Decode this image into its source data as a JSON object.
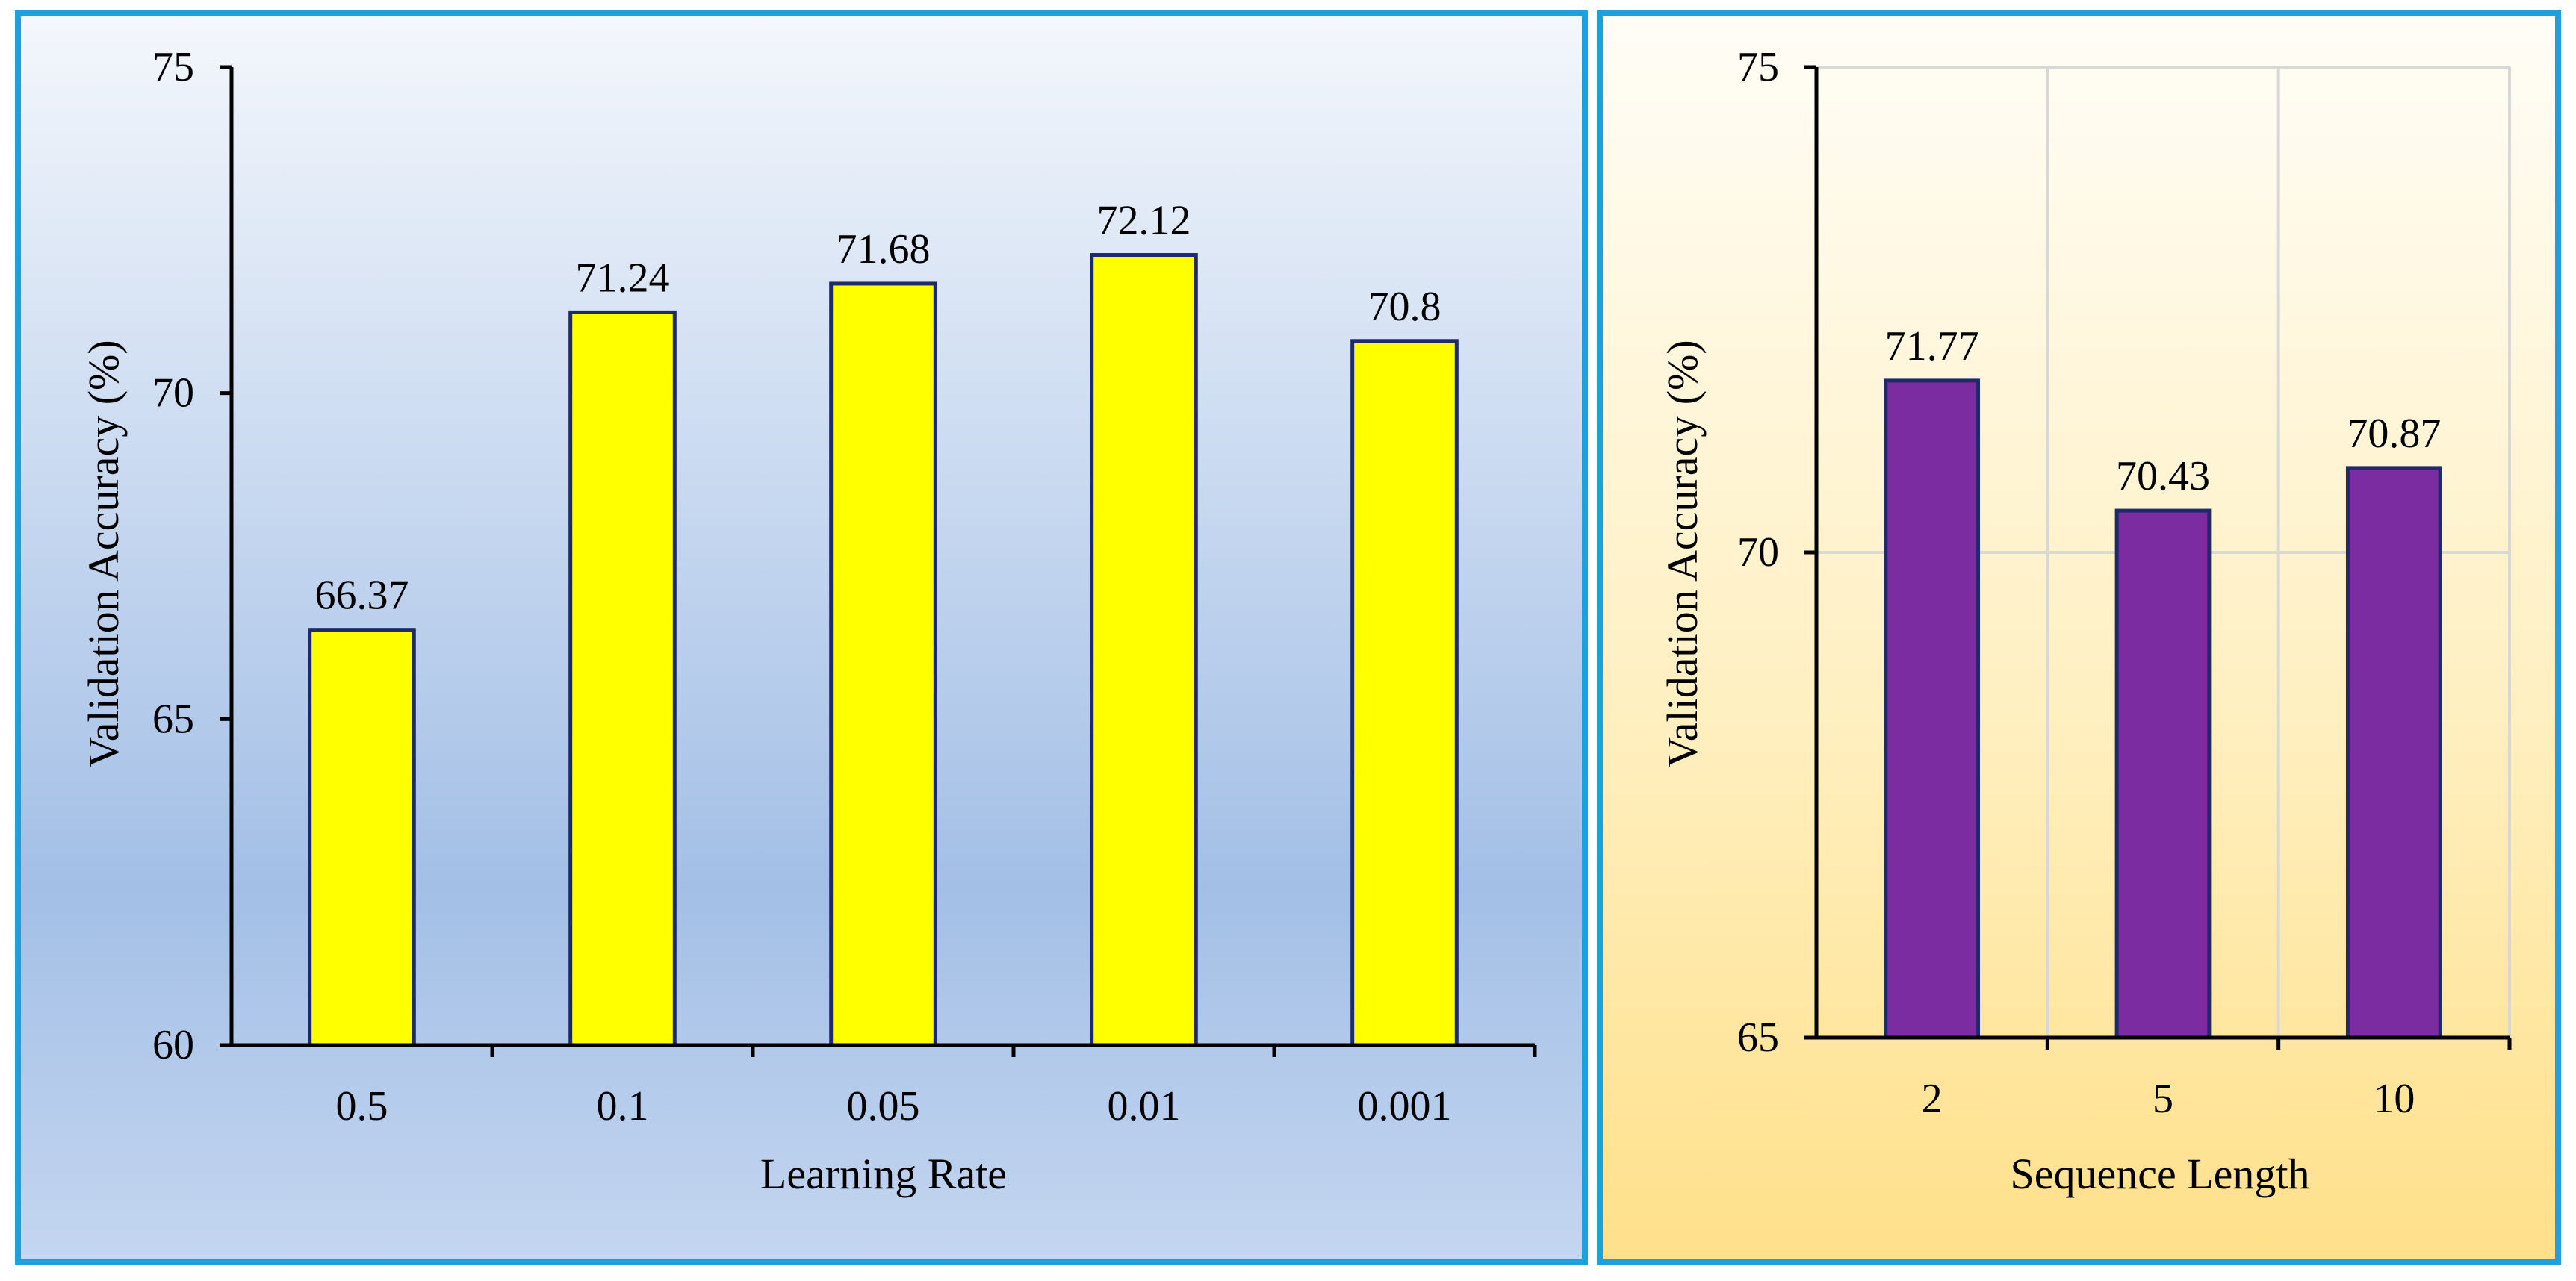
{
  "chart_data": [
    {
      "type": "bar",
      "title": "",
      "xlabel": "Learning Rate",
      "ylabel": "Validation Accuracy (%)",
      "categories": [
        "0.5",
        "0.1",
        "0.05",
        "0.01",
        "0.001"
      ],
      "values": [
        66.37,
        71.24,
        71.68,
        72.12,
        70.8
      ],
      "value_labels": [
        "66.37",
        "71.24",
        "71.68",
        "72.12",
        "70.8"
      ],
      "ylim": [
        60,
        75
      ],
      "yticks": [
        60,
        65,
        70,
        75
      ],
      "ytick_labels": [
        "60",
        "65",
        "70",
        "75"
      ],
      "grid": false,
      "bar_color": "#FFFF00",
      "bar_edge_color": "#1F2A6B",
      "background": [
        "#F4F7FC",
        "#A3BFE6",
        "#C4D6F0"
      ],
      "frame_color": "#1EA0DC"
    },
    {
      "type": "bar",
      "title": "",
      "xlabel": "Sequence Length",
      "ylabel": "Validation Accuracy (%)",
      "categories": [
        "2",
        "5",
        "10"
      ],
      "values": [
        71.77,
        70.43,
        70.87
      ],
      "value_labels": [
        "71.77",
        "70.43",
        "70.87"
      ],
      "ylim": [
        65,
        75
      ],
      "yticks": [
        65,
        70,
        75
      ],
      "ytick_labels": [
        "65",
        "70",
        "75"
      ],
      "grid": true,
      "bar_color": "#7B2CA0",
      "bar_edge_color": "#1F2A6B",
      "background": [
        "#FFFDF7",
        "#FFF0C2",
        "#FFE08A"
      ],
      "frame_color": "#1EA0DC"
    }
  ]
}
